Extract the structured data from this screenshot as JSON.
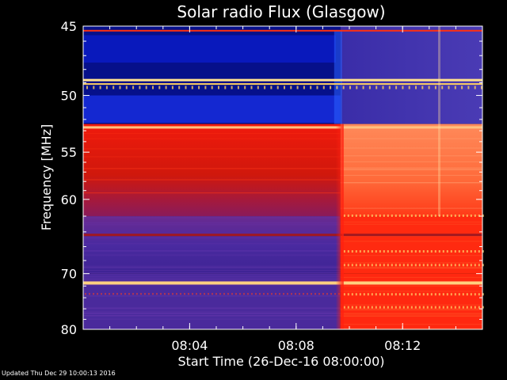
{
  "chart_data": {
    "type": "heatmap",
    "title": "Solar radio Flux (Glasgow)",
    "xlabel": "Start Time (26-Dec-16 08:00:00)",
    "ylabel": "Frequency [MHz]",
    "x_unit": "time",
    "xlim": [
      "08:00",
      "08:15"
    ],
    "ylim": [
      45,
      80
    ],
    "y_scale": "reciprocal",
    "x_ticks": [
      "08:04",
      "08:08",
      "08:12"
    ],
    "y_ticks": [
      45,
      50,
      55,
      60,
      70,
      80
    ],
    "grid": false,
    "event": {
      "onset_time": "08:09:40",
      "description_colors": [
        "#3a1f8c",
        "#ff3a10"
      ]
    },
    "bands": [
      {
        "from_mhz": 45,
        "to_mhz": 52.4,
        "before_color": "#06108a",
        "after_color": "#3a2da8"
      },
      {
        "from_mhz": 52.4,
        "to_mhz": 62,
        "before_color": "#e0180c",
        "after_color": "#ff7a48"
      },
      {
        "from_mhz": 62,
        "to_mhz": 70,
        "before_color": "#4a2aa0",
        "after_color": "#ff2a10"
      },
      {
        "from_mhz": 70,
        "to_mhz": 80,
        "before_color": "#4a2a9c",
        "after_color": "#ff2810"
      }
    ],
    "interference_lines_mhz": [
      45.3,
      48.8,
      49.1,
      52.7,
      64.4,
      71.5
    ]
  },
  "footer": {
    "updated": "Updated Thu Dec 29 10:00:13 2016"
  }
}
